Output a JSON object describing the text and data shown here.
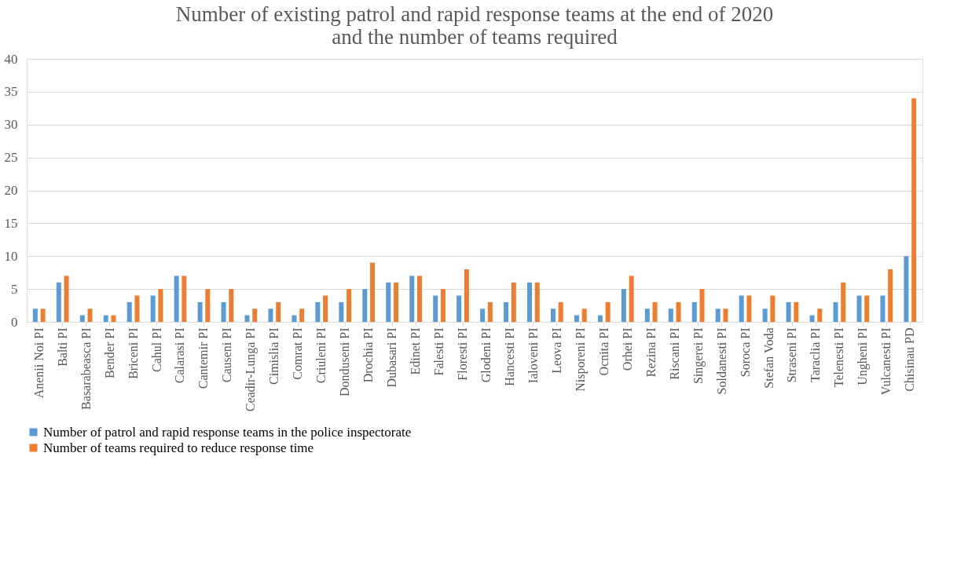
{
  "chart_data": {
    "type": "bar",
    "title": "Number of existing patrol and  rapid response teams at the end of 2020\nand the number of teams required",
    "categories": [
      "Anenii Noi PI",
      "Balti PI",
      "Basarabeasca PI",
      "Bender PI",
      "Briceni PI",
      "Cahul PI",
      "Calarasi PI",
      "Cantemir PI",
      "Causeni PI",
      "Ceadir-Lunga PI",
      "Cimislia PI",
      "Comrat PI",
      "Criuleni PI",
      "Donduseni PI",
      "Drochia PI",
      "Dubasari PI",
      "Edinet PI",
      "Falesti PI",
      "Floresti PI",
      "Glodeni PI",
      "Hancesti PI",
      "Ialoveni PI",
      "Leova PI",
      "Nisporeni PI",
      "Ocnita PI",
      "Orhei PI",
      "Rezina PI",
      "Riscani PI",
      "Singerei PI",
      "Soldanesti PI",
      "Soroca PI",
      "Stefan  Voda",
      "Straseni PI",
      "Taraclia PI",
      "Telenesti PI",
      "Ungheni PI",
      "Vulcanesti PI",
      "Chisinau PD"
    ],
    "series": [
      {
        "name": "Number of patrol and rapid response teams in the police inspectorate",
        "color": "#5b9bd5",
        "values": [
          2,
          6,
          1,
          1,
          3,
          4,
          7,
          3,
          3,
          1,
          2,
          1,
          3,
          3,
          5,
          6,
          7,
          4,
          4,
          2,
          3,
          6,
          2,
          1,
          1,
          5,
          2,
          2,
          3,
          2,
          4,
          2,
          3,
          1,
          3,
          4,
          4,
          10
        ]
      },
      {
        "name": "Number of teams required to reduce response time",
        "color": "#ed7d31",
        "values": [
          2,
          7,
          2,
          1,
          4,
          5,
          7,
          5,
          5,
          2,
          3,
          2,
          4,
          5,
          9,
          6,
          7,
          5,
          8,
          3,
          6,
          6,
          3,
          2,
          3,
          7,
          3,
          3,
          5,
          2,
          4,
          4,
          3,
          2,
          6,
          4,
          8,
          34
        ]
      }
    ],
    "ylim": [
      0,
      40
    ],
    "yticks": [
      0,
      5,
      10,
      15,
      20,
      25,
      30,
      35,
      40
    ],
    "grid": "y",
    "legend": "bottom"
  }
}
